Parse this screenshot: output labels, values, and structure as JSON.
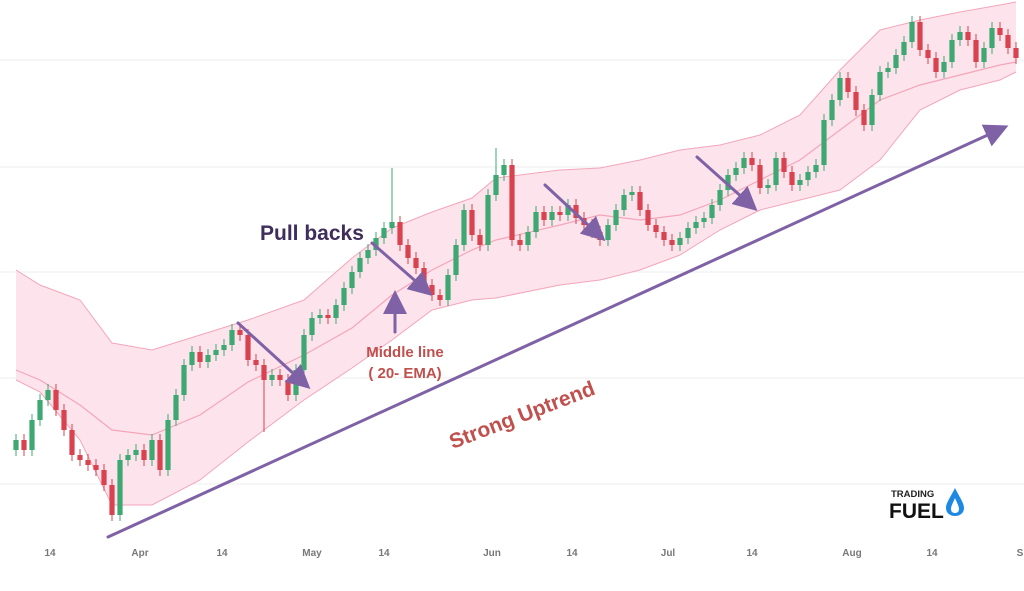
{
  "chart_data": {
    "type": "candlestick",
    "xlim": [
      -2,
      126
    ],
    "ylim": [
      0,
      55
    ],
    "yticks": [
      6.6,
      17.2,
      27.8,
      38.3,
      49
    ],
    "grid": true,
    "up_color": "#3da872",
    "down_color": "#d9434f",
    "xticks": [
      {
        "value": 4.25,
        "label": "14"
      },
      {
        "value": 15.5,
        "label": "Apr"
      },
      {
        "value": 25.75,
        "label": "14"
      },
      {
        "value": 37,
        "label": "May"
      },
      {
        "value": 46,
        "label": "14"
      },
      {
        "value": 59.5,
        "label": "Jun"
      },
      {
        "value": 69.5,
        "label": "14"
      },
      {
        "value": 81.5,
        "label": "Jul"
      },
      {
        "value": 92,
        "label": "14"
      },
      {
        "value": 104.5,
        "label": "Aug"
      },
      {
        "value": 114.5,
        "label": "14"
      },
      {
        "value": 125.5,
        "label": "S"
      }
    ],
    "x": [
      0,
      1,
      2,
      3,
      4,
      5,
      6,
      7,
      8,
      9,
      10,
      11,
      12,
      13,
      14,
      15,
      16,
      17,
      18,
      19,
      20,
      21,
      22,
      23,
      24,
      25,
      26,
      27,
      28,
      29,
      30,
      31,
      32,
      33,
      34,
      35,
      36,
      37,
      38,
      39,
      40,
      41,
      42,
      43,
      44,
      45,
      46,
      47,
      48,
      49,
      50,
      51,
      52,
      53,
      54,
      55,
      56,
      57,
      58,
      59,
      60,
      61,
      62,
      63,
      64,
      65,
      66,
      67,
      68,
      69,
      70,
      71,
      72,
      73,
      74,
      75,
      76,
      77,
      78,
      79,
      80,
      81,
      82,
      83,
      84,
      85,
      86,
      87,
      88,
      89,
      90,
      91,
      92,
      93,
      94,
      95,
      96,
      97,
      98,
      99,
      100,
      101,
      102,
      103,
      104,
      105,
      106,
      107,
      108,
      109,
      110,
      111,
      112,
      113,
      114,
      115,
      116,
      117,
      118,
      119,
      120,
      121,
      122,
      123,
      124,
      125
    ],
    "ohlc": [
      [
        10.0,
        11.6,
        9.4,
        11.0
      ],
      [
        11.0,
        11.6,
        9.4,
        10.0
      ],
      [
        10.0,
        13.6,
        9.4,
        13.0
      ],
      [
        13.0,
        15.6,
        12.4,
        15.0
      ],
      [
        15.0,
        16.6,
        14.4,
        16.0
      ],
      [
        16.0,
        16.6,
        13.4,
        14.0
      ],
      [
        14.0,
        14.6,
        11.4,
        12.0
      ],
      [
        12.0,
        12.6,
        8.9,
        9.5
      ],
      [
        9.5,
        10.1,
        8.4,
        9.0
      ],
      [
        9.0,
        9.6,
        7.9,
        8.5
      ],
      [
        8.5,
        9.1,
        7.4,
        8.0
      ],
      [
        8.0,
        8.6,
        5.9,
        6.5
      ],
      [
        6.5,
        7.1,
        2.9,
        3.5
      ],
      [
        3.5,
        9.6,
        2.9,
        9.0
      ],
      [
        9.0,
        10.1,
        8.4,
        9.5
      ],
      [
        9.5,
        10.6,
        8.9,
        10.0
      ],
      [
        10.0,
        10.6,
        8.4,
        9.0
      ],
      [
        9.0,
        11.6,
        8.4,
        11.0
      ],
      [
        11.0,
        11.6,
        7.4,
        8.0
      ],
      [
        8.0,
        13.6,
        7.4,
        13.0
      ],
      [
        13.0,
        16.1,
        12.4,
        15.5
      ],
      [
        15.5,
        19.1,
        14.9,
        18.5
      ],
      [
        18.5,
        20.4,
        17.9,
        19.8
      ],
      [
        19.8,
        20.4,
        18.2,
        18.8
      ],
      [
        18.8,
        20.1,
        18.2,
        19.5
      ],
      [
        19.5,
        20.6,
        18.9,
        20.0
      ],
      [
        20.0,
        21.1,
        19.4,
        20.5
      ],
      [
        20.5,
        22.6,
        19.9,
        22.0
      ],
      [
        22.0,
        22.6,
        20.9,
        21.5
      ],
      [
        21.5,
        22.1,
        18.4,
        19.0
      ],
      [
        19.0,
        19.6,
        17.9,
        18.5
      ],
      [
        18.5,
        19.1,
        11.8,
        17.0
      ],
      [
        17.0,
        18.1,
        16.4,
        17.5
      ],
      [
        17.5,
        18.1,
        16.4,
        17.0
      ],
      [
        17.0,
        17.6,
        14.9,
        15.5
      ],
      [
        15.5,
        18.6,
        14.9,
        18.0
      ],
      [
        18.0,
        22.1,
        17.4,
        21.5
      ],
      [
        21.5,
        23.8,
        20.9,
        23.2
      ],
      [
        23.2,
        24.1,
        22.6,
        23.5
      ],
      [
        23.5,
        24.1,
        22.6,
        23.2
      ],
      [
        23.2,
        25.1,
        22.6,
        24.5
      ],
      [
        24.5,
        26.8,
        23.9,
        26.2
      ],
      [
        26.2,
        28.4,
        25.6,
        27.8
      ],
      [
        27.8,
        29.8,
        27.2,
        29.2
      ],
      [
        29.2,
        30.6,
        28.6,
        30.0
      ],
      [
        30.0,
        31.8,
        29.4,
        31.2
      ],
      [
        31.2,
        32.8,
        30.6,
        32.2
      ],
      [
        32.2,
        38.2,
        31.6,
        32.8
      ],
      [
        32.8,
        33.4,
        29.9,
        30.5
      ],
      [
        30.5,
        31.1,
        28.6,
        29.2
      ],
      [
        29.2,
        29.8,
        27.6,
        28.2
      ],
      [
        28.2,
        28.8,
        25.9,
        26.5
      ],
      [
        26.5,
        27.1,
        24.9,
        25.5
      ],
      [
        25.5,
        26.1,
        24.4,
        25.0
      ],
      [
        25.0,
        28.1,
        24.4,
        27.5
      ],
      [
        27.5,
        31.1,
        26.9,
        30.5
      ],
      [
        30.5,
        34.6,
        29.9,
        34.0
      ],
      [
        34.0,
        34.6,
        30.9,
        31.5
      ],
      [
        31.5,
        32.1,
        29.9,
        30.5
      ],
      [
        30.5,
        36.1,
        29.9,
        35.5
      ],
      [
        35.5,
        40.2,
        34.9,
        37.5
      ],
      [
        37.5,
        39.1,
        36.9,
        38.5
      ],
      [
        38.5,
        39.1,
        30.4,
        31.0
      ],
      [
        31.0,
        31.6,
        29.9,
        30.5
      ],
      [
        30.5,
        32.4,
        29.9,
        31.8
      ],
      [
        31.8,
        34.4,
        31.2,
        33.8
      ],
      [
        33.8,
        34.4,
        32.4,
        33.0
      ],
      [
        33.0,
        34.4,
        32.4,
        33.8
      ],
      [
        33.8,
        34.4,
        32.9,
        33.5
      ],
      [
        33.5,
        35.1,
        32.9,
        34.5
      ],
      [
        34.5,
        35.1,
        32.6,
        33.2
      ],
      [
        33.2,
        33.8,
        31.9,
        32.5
      ],
      [
        32.5,
        33.1,
        31.2,
        31.8
      ],
      [
        31.8,
        32.4,
        30.4,
        31.0
      ],
      [
        31.0,
        33.1,
        30.4,
        32.5
      ],
      [
        32.5,
        34.6,
        31.9,
        34.0
      ],
      [
        34.0,
        36.1,
        33.4,
        35.5
      ],
      [
        35.5,
        36.4,
        34.9,
        35.8
      ],
      [
        35.8,
        36.4,
        33.4,
        34.0
      ],
      [
        34.0,
        34.6,
        31.9,
        32.5
      ],
      [
        32.5,
        33.1,
        31.2,
        31.8
      ],
      [
        31.8,
        32.4,
        30.4,
        31.0
      ],
      [
        31.0,
        31.6,
        29.9,
        30.5
      ],
      [
        30.5,
        31.8,
        29.9,
        31.2
      ],
      [
        31.2,
        32.8,
        30.6,
        32.2
      ],
      [
        32.2,
        33.4,
        31.6,
        32.8
      ],
      [
        32.8,
        33.8,
        32.2,
        33.2
      ],
      [
        33.2,
        35.1,
        32.6,
        34.5
      ],
      [
        34.5,
        36.6,
        33.9,
        36.0
      ],
      [
        36.0,
        38.1,
        35.4,
        37.5
      ],
      [
        37.5,
        38.8,
        36.9,
        38.2
      ],
      [
        38.2,
        39.8,
        37.6,
        39.2
      ],
      [
        39.2,
        39.8,
        37.9,
        38.5
      ],
      [
        38.5,
        39.1,
        35.6,
        36.2
      ],
      [
        36.2,
        37.1,
        35.6,
        36.5
      ],
      [
        36.5,
        39.8,
        35.9,
        39.2
      ],
      [
        39.2,
        39.8,
        37.2,
        37.8
      ],
      [
        37.8,
        38.4,
        35.9,
        36.5
      ],
      [
        36.5,
        37.6,
        35.9,
        37.0
      ],
      [
        37.0,
        38.4,
        36.4,
        37.8
      ],
      [
        37.8,
        39.1,
        37.2,
        38.5
      ],
      [
        38.5,
        43.6,
        37.9,
        43.0
      ],
      [
        43.0,
        45.6,
        42.4,
        45.0
      ],
      [
        45.0,
        47.8,
        44.4,
        47.2
      ],
      [
        47.2,
        47.8,
        45.2,
        45.8
      ],
      [
        45.8,
        46.4,
        43.4,
        44.0
      ],
      [
        44.0,
        44.6,
        41.9,
        42.5
      ],
      [
        42.5,
        46.1,
        41.9,
        45.5
      ],
      [
        45.5,
        48.4,
        44.9,
        47.8
      ],
      [
        47.8,
        48.8,
        47.2,
        48.2
      ],
      [
        48.2,
        50.1,
        47.6,
        49.5
      ],
      [
        49.5,
        51.4,
        48.9,
        50.8
      ],
      [
        50.8,
        53.4,
        50.2,
        52.8
      ],
      [
        52.8,
        53.4,
        49.4,
        50.0
      ],
      [
        50.0,
        50.6,
        48.6,
        49.2
      ],
      [
        49.2,
        49.8,
        47.2,
        47.8
      ],
      [
        47.8,
        49.4,
        47.2,
        48.8
      ],
      [
        48.8,
        51.6,
        48.2,
        51.0
      ],
      [
        51.0,
        52.4,
        50.4,
        51.8
      ],
      [
        51.8,
        52.4,
        50.4,
        51.0
      ],
      [
        51.0,
        51.6,
        48.2,
        48.8
      ],
      [
        48.8,
        50.8,
        48.2,
        50.2
      ],
      [
        50.2,
        52.8,
        49.6,
        52.2
      ],
      [
        52.2,
        52.8,
        50.9,
        51.5
      ],
      [
        51.5,
        52.1,
        49.6,
        50.2
      ],
      [
        50.2,
        50.8,
        48.6,
        49.2
      ]
    ],
    "bands": {
      "x": [
        0,
        3,
        8,
        12,
        17,
        23,
        29,
        36,
        42,
        47,
        52,
        57,
        60,
        68,
        73,
        78,
        83,
        88,
        93,
        98,
        103,
        108,
        113,
        118,
        123,
        125
      ],
      "upper": [
        28.0,
        26.5,
        25.0,
        20.7,
        20.0,
        21.5,
        23.0,
        25.0,
        29.2,
        32.2,
        33.8,
        35.2,
        37.2,
        38.0,
        38.2,
        39.0,
        40.0,
        40.5,
        41.5,
        43.5,
        48.0,
        52.0,
        53.0,
        53.8,
        54.5,
        54.8
      ],
      "middle": [
        18.0,
        17.0,
        14.5,
        12.0,
        11.5,
        13.5,
        16.8,
        19.5,
        22.2,
        25.5,
        28.0,
        30.0,
        31.0,
        32.5,
        33.5,
        33.0,
        33.5,
        35.0,
        37.0,
        39.0,
        42.0,
        45.0,
        46.5,
        47.5,
        48.5,
        48.8
      ],
      "lower": [
        17.0,
        15.8,
        11.0,
        4.5,
        4.5,
        7.0,
        10.8,
        15.0,
        18.2,
        21.0,
        24.0,
        25.0,
        25.2,
        26.5,
        27.0,
        28.0,
        29.5,
        32.0,
        34.0,
        35.0,
        36.0,
        39.0,
        44.0,
        46.0,
        47.0,
        47.8
      ],
      "fill": "#fde3eb",
      "line_color": "#f3a6bb"
    },
    "annotations": [
      "Pull backs",
      "Middle line",
      "( 20- EMA)",
      "Strong Uptrend"
    ],
    "logo": {
      "top": "TRADING",
      "bottom": "FUEL"
    }
  }
}
